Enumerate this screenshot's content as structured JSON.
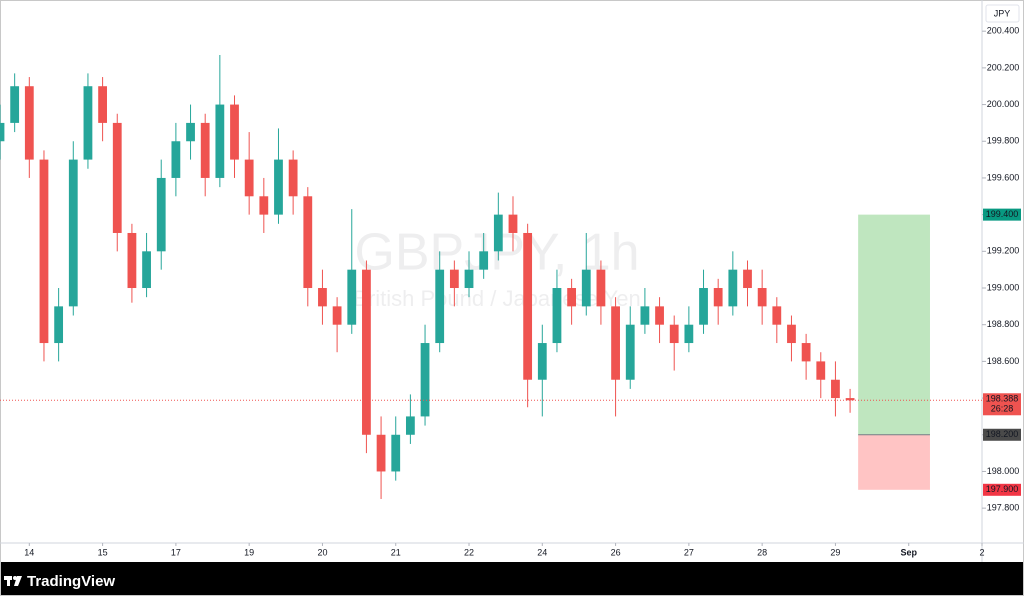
{
  "chart_data": {
    "type": "candlestick",
    "title": "GBPJPY, 1h",
    "subtitle": "British Pound / Japanese Yen",
    "currency": "JPY",
    "brand": "TradingView",
    "x": [
      -0.4,
      -0.2,
      0,
      0.2,
      0.4,
      0.6,
      0.8,
      1,
      1.2,
      1.4,
      1.6,
      1.8,
      2,
      2.2,
      2.4,
      2.6,
      2.8,
      3,
      3.2,
      3.4,
      3.6,
      3.8,
      4,
      4.2,
      4.4,
      4.6,
      4.8,
      5,
      5.2,
      5.4,
      5.6,
      5.8,
      6,
      6.2,
      6.4,
      6.6,
      6.8,
      7,
      7.2,
      7.4,
      7.6,
      7.8,
      8,
      8.2,
      8.4,
      8.6,
      8.8,
      9,
      9.2,
      9.4,
      9.6,
      9.8,
      10,
      10.2,
      10.4,
      10.6,
      10.8,
      11,
      11.2
    ],
    "open": [
      199.8,
      199.9,
      200.1,
      199.7,
      198.7,
      198.9,
      199.7,
      200.1,
      199.9,
      199.3,
      199.0,
      199.2,
      199.6,
      199.8,
      199.9,
      199.6,
      200.0,
      199.7,
      199.5,
      199.4,
      199.7,
      199.5,
      199.0,
      198.9,
      198.8,
      199.1,
      198.2,
      198.0,
      198.2,
      198.3,
      198.7,
      199.1,
      199.0,
      199.1,
      199.2,
      199.4,
      199.3,
      198.5,
      198.7,
      199.0,
      198.9,
      199.1,
      198.9,
      198.5,
      198.8,
      198.9,
      198.8,
      198.7,
      198.8,
      199.0,
      198.9,
      199.1,
      199.0,
      198.9,
      198.8,
      198.7,
      198.6,
      198.5,
      198.4
    ],
    "high": [
      200.0,
      200.17,
      200.15,
      199.75,
      199.0,
      199.8,
      200.17,
      200.15,
      199.95,
      199.35,
      199.3,
      199.7,
      199.9,
      200.0,
      199.95,
      200.27,
      200.05,
      199.85,
      199.6,
      199.87,
      199.75,
      199.55,
      199.1,
      198.95,
      199.43,
      199.15,
      198.3,
      198.3,
      198.42,
      198.8,
      199.2,
      199.15,
      199.2,
      199.3,
      199.52,
      199.5,
      199.35,
      198.8,
      199.1,
      199.05,
      199.3,
      199.15,
      198.95,
      198.9,
      199.0,
      198.95,
      198.85,
      198.9,
      199.1,
      199.05,
      199.2,
      199.15,
      199.1,
      198.95,
      198.85,
      198.75,
      198.65,
      198.6,
      198.45
    ],
    "low": [
      199.7,
      199.85,
      199.6,
      198.6,
      198.6,
      198.85,
      199.65,
      199.8,
      199.2,
      198.92,
      198.95,
      199.1,
      199.5,
      199.7,
      199.5,
      199.55,
      199.6,
      199.4,
      199.3,
      199.35,
      199.4,
      198.9,
      198.8,
      198.65,
      198.75,
      198.1,
      197.85,
      197.95,
      198.15,
      198.25,
      198.65,
      198.9,
      198.95,
      199.05,
      199.15,
      199.2,
      198.35,
      198.3,
      198.65,
      198.8,
      198.85,
      198.8,
      198.3,
      198.45,
      198.75,
      198.7,
      198.55,
      198.65,
      198.75,
      198.8,
      198.85,
      198.9,
      198.8,
      198.7,
      198.6,
      198.5,
      198.4,
      198.3,
      198.32
    ],
    "close": [
      199.9,
      200.1,
      199.7,
      198.7,
      198.9,
      199.7,
      200.1,
      199.9,
      199.3,
      199.0,
      199.2,
      199.6,
      199.8,
      199.9,
      199.6,
      200.0,
      199.7,
      199.5,
      199.4,
      199.7,
      199.5,
      199.0,
      198.9,
      198.8,
      199.1,
      198.2,
      198.0,
      198.2,
      198.3,
      198.7,
      199.1,
      199.0,
      199.1,
      199.2,
      199.4,
      199.3,
      198.5,
      198.7,
      199.0,
      198.9,
      199.1,
      198.9,
      198.5,
      198.8,
      198.9,
      198.8,
      198.7,
      198.8,
      199.0,
      198.9,
      199.1,
      199.0,
      198.9,
      198.8,
      198.7,
      198.6,
      198.5,
      198.4,
      198.388
    ],
    "up_color": "#26a69a",
    "down_color": "#ef5350",
    "xlim": [
      -0.4,
      13
    ],
    "xticks": [
      {
        "value": 0,
        "label": "14"
      },
      {
        "value": 1,
        "label": "15"
      },
      {
        "value": 2,
        "label": "17"
      },
      {
        "value": 3,
        "label": "19"
      },
      {
        "value": 4,
        "label": "20"
      },
      {
        "value": 5,
        "label": "21"
      },
      {
        "value": 6,
        "label": "22"
      },
      {
        "value": 7,
        "label": "24"
      },
      {
        "value": 8,
        "label": "26"
      },
      {
        "value": 9,
        "label": "27"
      },
      {
        "value": 10,
        "label": "28"
      },
      {
        "value": 11,
        "label": "29"
      },
      {
        "value": 12,
        "label": "Sep"
      },
      {
        "value": 13,
        "label": "2"
      }
    ],
    "ylim": [
      197.61,
      200.57
    ],
    "yticks": [
      {
        "value": 197.8,
        "label": "197.800"
      },
      {
        "value": 198.0,
        "label": "198.000"
      },
      {
        "value": 198.2,
        "label": "198.200"
      },
      {
        "value": 198.4,
        "label": "198.400"
      },
      {
        "value": 198.6,
        "label": "198.600"
      },
      {
        "value": 198.8,
        "label": "198.800"
      },
      {
        "value": 199.0,
        "label": "199.000"
      },
      {
        "value": 199.2,
        "label": "199.200"
      },
      {
        "value": 199.4,
        "label": "199.400"
      },
      {
        "value": 199.6,
        "label": "199.600"
      },
      {
        "value": 199.8,
        "label": "199.800"
      },
      {
        "value": 200.0,
        "label": "200.000"
      },
      {
        "value": 200.2,
        "label": "200.200"
      },
      {
        "value": 200.4,
        "label": "200.400"
      }
    ],
    "last_price": {
      "value": 198.388,
      "label": "198.388",
      "countdown": "26:28",
      "color": "#ef5350"
    },
    "position": {
      "x_start": 11.31,
      "x_end": 12.29,
      "target": {
        "value": 199.4,
        "label": "199.400",
        "color": "#089981"
      },
      "entry": {
        "value": 198.2,
        "label": "198.200",
        "color": "#4a4a4a"
      },
      "stop": {
        "value": 197.9,
        "label": "197.900",
        "color": "#f23645"
      },
      "profit_color": "#bfe6bf",
      "loss_color": "#ffc4c4"
    }
  }
}
